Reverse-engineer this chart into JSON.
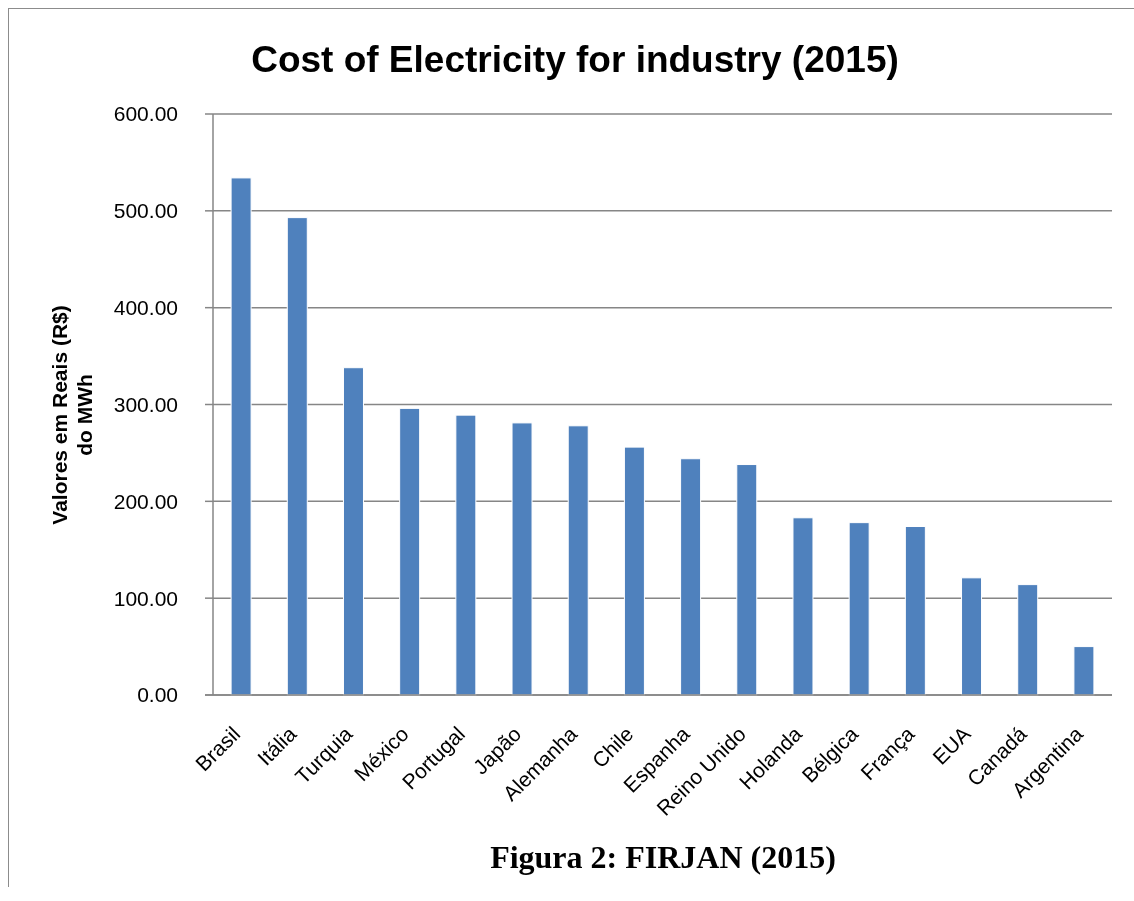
{
  "chart_data": {
    "type": "bar",
    "title": "Cost of Electricity for industry (2015)",
    "ylabel": "Valores em Reais (R$)\ndo MWh",
    "categories": [
      "Brasil",
      "Itália",
      "Turquia",
      "México",
      "Portugal",
      "Japão",
      "Alemanha",
      "Chile",
      "Espanha",
      "Reino Unido",
      "Holanda",
      "Bélgica",
      "França",
      "EUA",
      "Canadá",
      "Argentina"
    ],
    "values": [
      534,
      493,
      338,
      296,
      289,
      281,
      278,
      256,
      244,
      238,
      183,
      178,
      174,
      121,
      114,
      50
    ],
    "color": "#4f81bd",
    "ylim": [
      0,
      600
    ],
    "yticks": [
      {
        "value": 0,
        "label": "0.00"
      },
      {
        "value": 100,
        "label": "100.00"
      },
      {
        "value": 200,
        "label": "200.00"
      },
      {
        "value": 300,
        "label": "300.00"
      },
      {
        "value": 400,
        "label": "400.00"
      },
      {
        "value": 500,
        "label": "500.00"
      },
      {
        "value": 600,
        "label": "600.00"
      }
    ],
    "grid": "y",
    "annotations": [
      "Figura 2: FIRJAN (2015)"
    ]
  }
}
